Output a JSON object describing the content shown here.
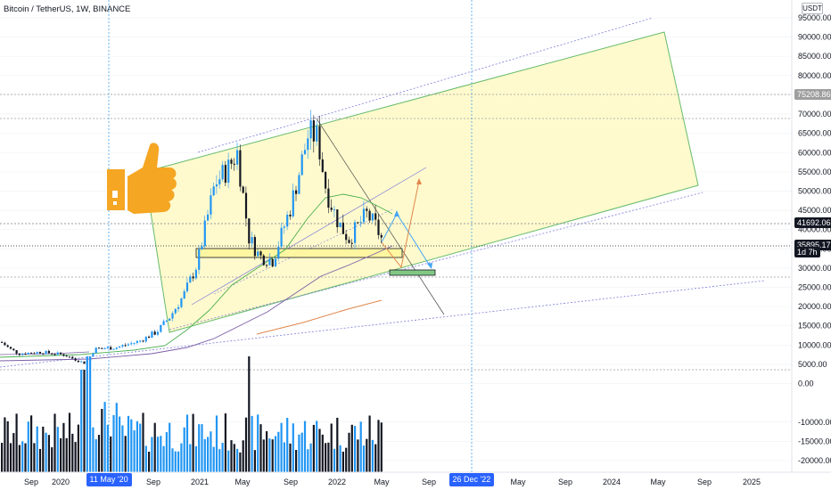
{
  "header": {
    "title": "Bitcoin / TetherUS, 1W, BINANCE",
    "currency": "USDT"
  },
  "colors": {
    "up": "#2196f3",
    "down": "#131722",
    "channel_fill": "#fff9c4",
    "channel_line": "#66bb6a",
    "ma_green": "#4caf50",
    "ma_purple": "#7b5ea7",
    "ma_orange": "#e0874a",
    "crosshair": "#2196f3",
    "grid": "#eef0f3"
  },
  "price_axis": {
    "ticks": [
      "95000.00",
      "90000.00",
      "85000.00",
      "80000.00",
      "75000.00",
      "70000.00",
      "65000.00",
      "60000.00",
      "55000.00",
      "50000.00",
      "45000.00",
      "40000.00",
      "35000.00",
      "30000.00",
      "25000.00",
      "20000.00",
      "15000.00",
      "10000.00",
      "5000.00",
      "0.00",
      "-10000.00",
      "-15000.00",
      "-20000.00"
    ],
    "tick_values": [
      95000,
      90000,
      85000,
      80000,
      75000,
      70000,
      65000,
      60000,
      55000,
      50000,
      45000,
      40000,
      35000,
      30000,
      25000,
      20000,
      15000,
      10000,
      5000,
      0,
      -10000,
      -15000,
      -20000
    ],
    "min": -22000,
    "max": 98000
  },
  "time_axis": {
    "labels": [
      "Sep",
      "2020",
      "11 May '20",
      "Sep",
      "2021",
      "May",
      "Sep",
      "2022",
      "May",
      "Sep",
      "26 Dec '22",
      "May",
      "Sep",
      "2024",
      "May",
      "Sep",
      "2025"
    ],
    "highlight": [
      "11 May '20",
      "26 Dec '22"
    ]
  },
  "price_tags": [
    {
      "label": "75208.86",
      "value": 75208.86,
      "bg": "#9e9e9e",
      "fg": "#ffffff"
    },
    {
      "label": "41692.06",
      "value": 41692.06,
      "bg": "#131722",
      "fg": "#ffffff"
    },
    {
      "label": "35895.17",
      "value": 35895.17,
      "bg": "#131722",
      "fg": "#ffffff"
    },
    {
      "label": "1d 7h",
      "value": 34200,
      "bg": "#131722",
      "fg": "#ffffff"
    }
  ],
  "sticker": {
    "name": "thumbs-up-icon",
    "color": "#f5a623"
  },
  "chart_data": {
    "type": "candlestick",
    "title": "Bitcoin / TetherUS, 1W, BINANCE",
    "ylim": [
      -22000,
      98000
    ],
    "horizontal_levels": [
      75208.86,
      69000,
      41692.06,
      35895.17,
      28000,
      4000
    ],
    "key_prices": [
      {
        "date": "2019-08",
        "close": 10500
      },
      {
        "date": "2020-03",
        "close": 5000
      },
      {
        "date": "2020-05",
        "close": 9000
      },
      {
        "date": "2020-12",
        "close": 28000
      },
      {
        "date": "2021-04",
        "close": 63000
      },
      {
        "date": "2021-07",
        "close": 30000
      },
      {
        "date": "2021-11",
        "close": 68000
      },
      {
        "date": "2022-01",
        "close": 36000
      },
      {
        "date": "2022-03",
        "close": 47000
      },
      {
        "date": "2022-04",
        "close": 38500
      }
    ]
  }
}
